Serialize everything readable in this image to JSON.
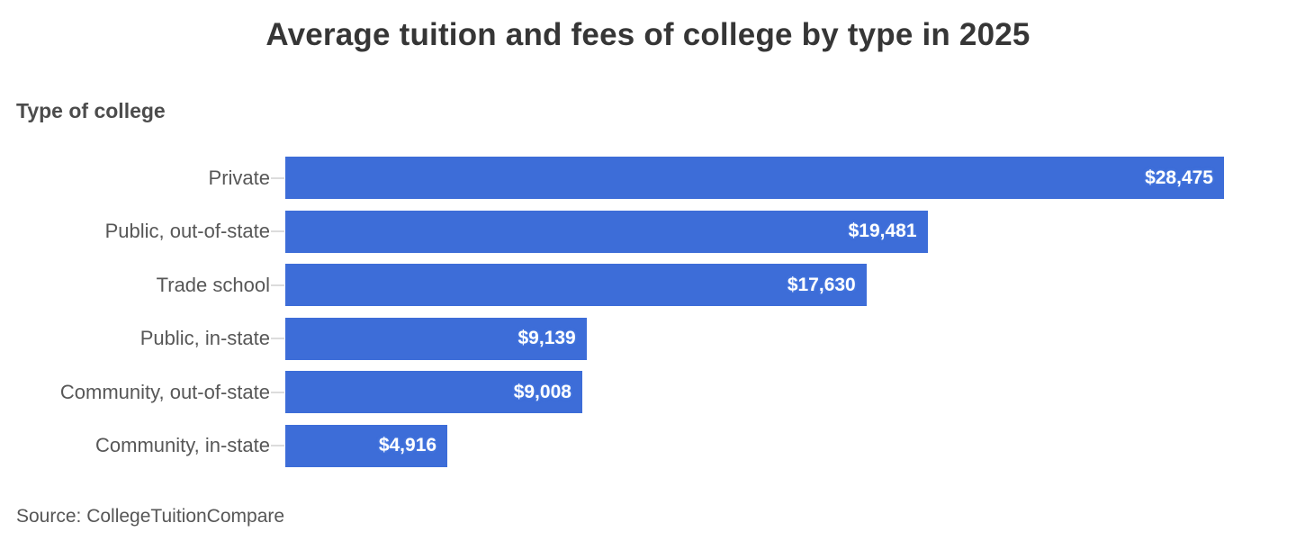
{
  "header": {
    "title": "Average tuition and fees of college by type in 2025",
    "axis_label": "Type of college"
  },
  "footer": {
    "source": "Source: CollegeTuitionCompare"
  },
  "colors": {
    "bar": "#3d6dd8",
    "title_text": "#363636",
    "category_text": "#575757",
    "value_text": "#ffffff",
    "tick": "#dcdcdc",
    "background": "#ffffff"
  },
  "chart_data": {
    "type": "bar",
    "orientation": "horizontal",
    "title": "Average tuition and fees of college by type in 2025",
    "ylabel": "Type of college",
    "xlabel": "",
    "categories": [
      "Private",
      "Public, out-of-state",
      "Trade school",
      "Public, in-state",
      "Community, out-of-state",
      "Community, in-state"
    ],
    "values": [
      28475,
      19481,
      17630,
      9139,
      9008,
      4916
    ],
    "value_labels": [
      "$28,475",
      "$19,481",
      "$17,630",
      "$9,139",
      "$9,008",
      "$4,916"
    ],
    "xlim": [
      0,
      28475
    ],
    "grid": false,
    "legend": false,
    "value_label_position": "inside-end",
    "source": "Source: CollegeTuitionCompare"
  }
}
